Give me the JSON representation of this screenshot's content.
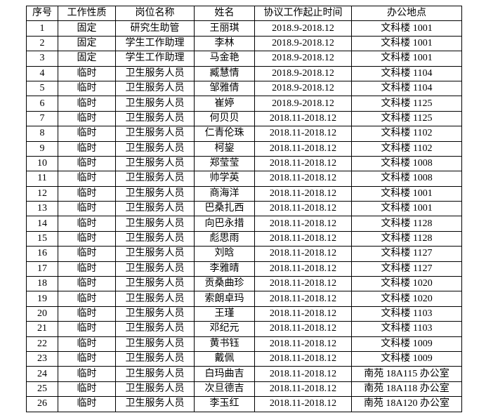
{
  "headers": [
    "序号",
    "工作性质",
    "岗位名称",
    "姓名",
    "协议工作起止时间",
    "办公地点"
  ],
  "rows": [
    [
      "1",
      "固定",
      "研究生助管",
      "王丽琪",
      "2018.9-2018.12",
      "文科楼 1001"
    ],
    [
      "2",
      "固定",
      "学生工作助理",
      "李林",
      "2018.9-2018.12",
      "文科楼 1001"
    ],
    [
      "3",
      "固定",
      "学生工作助理",
      "马金艳",
      "2018.9-2018.12",
      "文科楼 1001"
    ],
    [
      "4",
      "临时",
      "卫生服务人员",
      "臧慧情",
      "2018.9-2018.12",
      "文科楼 1104"
    ],
    [
      "5",
      "临时",
      "卫生服务人员",
      "邹雅倩",
      "2018.9-2018.12",
      "文科楼 1104"
    ],
    [
      "6",
      "临时",
      "卫生服务人员",
      "崔婷",
      "2018.9-2018.12",
      "文科楼 1125"
    ],
    [
      "7",
      "临时",
      "卫生服务人员",
      "何贝贝",
      "2018.11-2018.12",
      "文科楼 1125"
    ],
    [
      "8",
      "临时",
      "卫生服务人员",
      "仁青伦珠",
      "2018.11-2018.12",
      "文科楼 1102"
    ],
    [
      "9",
      "临时",
      "卫生服务人员",
      "柯鋆",
      "2018.11-2018.12",
      "文科楼 1102"
    ],
    [
      "10",
      "临时",
      "卫生服务人员",
      "郑莹莹",
      "2018.11-2018.12",
      "文科楼 1008"
    ],
    [
      "11",
      "临时",
      "卫生服务人员",
      "帅学英",
      "2018.11-2018.12",
      "文科楼 1008"
    ],
    [
      "12",
      "临时",
      "卫生服务人员",
      "商海洋",
      "2018.11-2018.12",
      "文科楼 1001"
    ],
    [
      "13",
      "临时",
      "卫生服务人员",
      "巴桑扎西",
      "2018.11-2018.12",
      "文科楼 1001"
    ],
    [
      "14",
      "临时",
      "卫生服务人员",
      "向巴永措",
      "2018.11-2018.12",
      "文科楼 1128"
    ],
    [
      "15",
      "临时",
      "卫生服务人员",
      "彪思雨",
      "2018.11-2018.12",
      "文科楼 1128"
    ],
    [
      "16",
      "临时",
      "卫生服务人员",
      "刘晗",
      "2018.11-2018.12",
      "文科楼 1127"
    ],
    [
      "17",
      "临时",
      "卫生服务人员",
      "李雅晴",
      "2018.11-2018.12",
      "文科楼 1127"
    ],
    [
      "18",
      "临时",
      "卫生服务人员",
      "贡桑曲珍",
      "2018.11-2018.12",
      "文科楼 1020"
    ],
    [
      "19",
      "临时",
      "卫生服务人员",
      "索朗卓玛",
      "2018.11-2018.12",
      "文科楼 1020"
    ],
    [
      "20",
      "临时",
      "卫生服务人员",
      "王瑾",
      "2018.11-2018.12",
      "文科楼 1103"
    ],
    [
      "21",
      "临时",
      "卫生服务人员",
      "邓纪元",
      "2018.11-2018.12",
      "文科楼 1103"
    ],
    [
      "22",
      "临时",
      "卫生服务人员",
      "黄书钰",
      "2018.11-2018.12",
      "文科楼 1009"
    ],
    [
      "23",
      "临时",
      "卫生服务人员",
      "戴佩",
      "2018.11-2018.12",
      "文科楼 1009"
    ],
    [
      "24",
      "临时",
      "卫生服务人员",
      "白玛曲吉",
      "2018.11-2018.12",
      "南苑 18A115 办公室"
    ],
    [
      "25",
      "临时",
      "卫生服务人员",
      "次旦德吉",
      "2018.11-2018.12",
      "南苑 18A118 办公室"
    ],
    [
      "26",
      "临时",
      "卫生服务人员",
      "李玉红",
      "2018.11-2018.12",
      "南苑 18A120 办公室"
    ]
  ]
}
